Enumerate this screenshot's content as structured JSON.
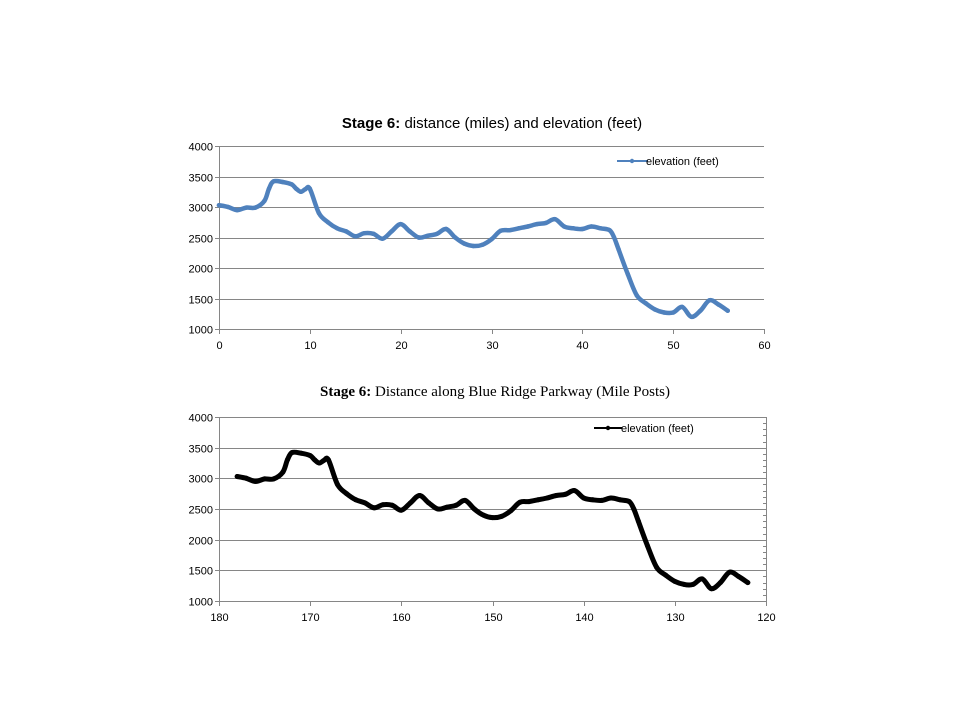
{
  "chart_data": [
    {
      "type": "line",
      "title_bold": "Stage 6:",
      "title_rest": " distance (miles) and elevation (feet)",
      "xlabel": "",
      "ylabel": "",
      "xlim": [
        0,
        60
      ],
      "ylim": [
        1000,
        4000
      ],
      "x_ticks": [
        "0",
        "10",
        "20",
        "30",
        "40",
        "50",
        "60"
      ],
      "x_tick_values": [
        0,
        10,
        20,
        30,
        40,
        50,
        60
      ],
      "y_ticks": [
        "1000",
        "1500",
        "2000",
        "2500",
        "3000",
        "3500",
        "4000"
      ],
      "y_tick_values": [
        1000,
        1500,
        2000,
        2500,
        3000,
        3500,
        4000
      ],
      "grid": true,
      "legend_position": "top-right",
      "series": [
        {
          "name": "elevation (feet)",
          "color": "#4f81bd",
          "x": [
            0,
            1,
            2,
            3,
            4,
            5,
            5.5,
            6,
            7,
            8,
            8.5,
            9,
            9.5,
            10,
            11,
            12,
            13,
            14,
            15,
            16,
            17,
            18,
            19,
            20,
            21,
            22,
            23,
            24,
            25,
            26,
            27,
            28,
            29,
            30,
            31,
            32,
            33,
            34,
            35,
            36,
            37,
            38,
            39,
            40,
            41,
            42,
            43,
            43.5,
            44,
            45,
            46,
            47,
            48,
            49,
            50,
            51,
            52,
            53,
            54,
            55,
            56
          ],
          "y": [
            3030,
            3000,
            2950,
            2990,
            2990,
            3100,
            3300,
            3420,
            3410,
            3370,
            3300,
            3250,
            3290,
            3300,
            2900,
            2750,
            2650,
            2600,
            2520,
            2570,
            2560,
            2480,
            2600,
            2720,
            2600,
            2500,
            2530,
            2560,
            2640,
            2500,
            2400,
            2360,
            2380,
            2470,
            2610,
            2620,
            2650,
            2680,
            2720,
            2740,
            2800,
            2680,
            2650,
            2640,
            2680,
            2650,
            2620,
            2500,
            2300,
            1900,
            1550,
            1420,
            1320,
            1270,
            1270,
            1360,
            1200,
            1300,
            1470,
            1400,
            1300
          ]
        }
      ]
    },
    {
      "type": "line",
      "title_bold": "Stage 6:",
      "title_rest": " Distance along Blue Ridge Parkway (Mile Posts)",
      "xlabel": "",
      "ylabel": "",
      "xlim": [
        180,
        120
      ],
      "ylim": [
        1000,
        4000
      ],
      "x_ticks": [
        "180",
        "170",
        "160",
        "150",
        "140",
        "130",
        "120"
      ],
      "x_tick_values": [
        180,
        170,
        160,
        150,
        140,
        130,
        120
      ],
      "y_ticks": [
        "1000",
        "1500",
        "2000",
        "2500",
        "3000",
        "3500",
        "4000"
      ],
      "y_tick_values": [
        1000,
        1500,
        2000,
        2500,
        3000,
        3500,
        4000
      ],
      "grid": true,
      "legend_position": "top-right",
      "series": [
        {
          "name": "elevation (feet)",
          "color": "#000000",
          "x": [
            178,
            177,
            176,
            175,
            174,
            173,
            172.5,
            172,
            171,
            170,
            169.5,
            169,
            168.5,
            168,
            167,
            166,
            165,
            164,
            163,
            162,
            161,
            160,
            159,
            158,
            157,
            156,
            155,
            154,
            153,
            152,
            151,
            150,
            149,
            148,
            147,
            146,
            145,
            144,
            143,
            142,
            141,
            140,
            139,
            138,
            137,
            136,
            135,
            134.5,
            134,
            133,
            132,
            131,
            130,
            129,
            128,
            127,
            126,
            125,
            124,
            123,
            122
          ],
          "y": [
            3030,
            3000,
            2950,
            2990,
            2990,
            3100,
            3300,
            3420,
            3410,
            3370,
            3300,
            3250,
            3290,
            3300,
            2900,
            2750,
            2650,
            2600,
            2520,
            2570,
            2560,
            2480,
            2600,
            2720,
            2600,
            2500,
            2530,
            2560,
            2640,
            2500,
            2400,
            2360,
            2380,
            2470,
            2610,
            2620,
            2650,
            2680,
            2720,
            2740,
            2800,
            2680,
            2650,
            2640,
            2680,
            2650,
            2620,
            2500,
            2300,
            1900,
            1550,
            1420,
            1320,
            1270,
            1270,
            1360,
            1200,
            1300,
            1470,
            1400,
            1300
          ]
        }
      ]
    }
  ]
}
